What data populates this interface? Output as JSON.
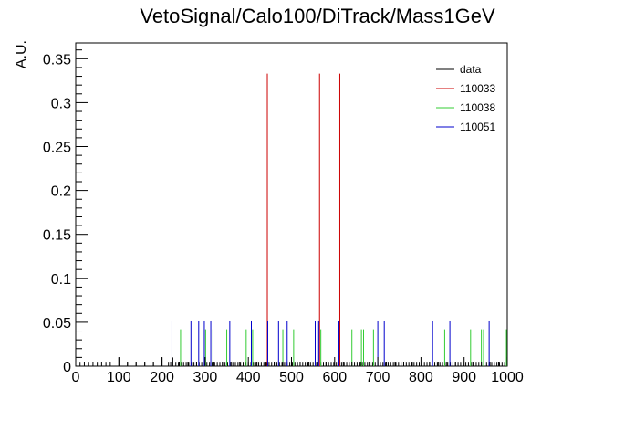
{
  "chart_data": {
    "type": "histogram",
    "title": "VetoSignal/Calo100/DiTrack/Mass1GeV",
    "xlabel": "",
    "ylabel": "A.U.",
    "xlim": [
      0,
      1000
    ],
    "ylim": [
      0,
      0.368
    ],
    "xticks": [
      0,
      100,
      200,
      300,
      400,
      500,
      600,
      700,
      800,
      900,
      1000
    ],
    "xtick_labels": [
      "0",
      "100",
      "200",
      "300",
      "400",
      "500",
      "600",
      "700",
      "800",
      "900",
      "1000"
    ],
    "yticks": [
      0,
      0.05,
      0.1,
      0.15,
      0.2,
      0.25,
      0.3,
      0.35
    ],
    "ytick_labels": [
      "0",
      "0.05",
      "0.1",
      "0.15",
      "0.2",
      "0.25",
      "0.3",
      "0.35"
    ],
    "grid": false,
    "legend_position": "top-right",
    "series": [
      {
        "name": "data",
        "color": "#000000",
        "x": [
          10,
          30,
          50,
          70,
          100,
          120,
          140,
          160,
          180,
          200,
          215,
          225,
          232,
          238,
          244,
          250,
          256,
          262,
          268,
          274,
          280,
          286,
          292,
          298,
          304,
          310,
          316,
          322,
          328,
          334,
          340,
          346,
          352,
          358,
          364,
          370,
          376,
          382,
          388,
          394,
          400,
          406,
          412,
          418,
          424,
          430,
          436,
          442,
          448,
          454,
          460,
          466,
          472,
          478,
          484,
          490,
          496,
          502,
          508,
          514,
          520,
          526,
          532,
          538,
          544,
          550,
          556,
          562,
          568,
          574,
          580,
          586,
          592,
          598,
          604,
          610,
          616,
          622,
          628,
          634,
          640,
          646,
          652,
          658,
          664,
          670,
          676,
          682,
          688,
          694,
          700,
          706,
          712,
          718,
          724,
          730,
          736,
          742,
          748,
          754,
          760,
          766,
          772,
          778,
          784,
          790,
          796,
          802,
          808,
          814,
          820,
          826,
          832,
          838,
          844,
          850,
          856,
          862,
          868,
          874,
          880,
          886,
          892,
          898,
          904,
          910,
          916,
          922,
          928,
          934,
          940,
          946,
          952,
          958,
          964,
          970,
          976,
          982,
          988,
          994
        ],
        "y": [
          0.005,
          0.005,
          0.005,
          0.005,
          0.01,
          0.005,
          0.005,
          0.005,
          0.005,
          0.01,
          0.005,
          0.01,
          0.005,
          0.005,
          0.005,
          0.005,
          0.005,
          0.005,
          0.005,
          0.005,
          0.005,
          0.005,
          0.005,
          0.005,
          0.005,
          0.005,
          0.005,
          0.005,
          0.005,
          0.005,
          0.005,
          0.005,
          0.005,
          0.005,
          0.005,
          0.005,
          0.005,
          0.005,
          0.005,
          0.005,
          0.005,
          0.005,
          0.005,
          0.005,
          0.005,
          0.005,
          0.005,
          0.005,
          0.005,
          0.005,
          0.005,
          0.005,
          0.005,
          0.005,
          0.005,
          0.005,
          0.005,
          0.005,
          0.005,
          0.005,
          0.005,
          0.005,
          0.005,
          0.005,
          0.005,
          0.005,
          0.005,
          0.005,
          0.005,
          0.005,
          0.005,
          0.005,
          0.005,
          0.005,
          0.005,
          0.005,
          0.005,
          0.005,
          0.005,
          0.005,
          0.005,
          0.005,
          0.005,
          0.005,
          0.005,
          0.005,
          0.005,
          0.005,
          0.005,
          0.005,
          0.005,
          0.005,
          0.005,
          0.005,
          0.005,
          0.005,
          0.005,
          0.005,
          0.005,
          0.005,
          0.005,
          0.005,
          0.005,
          0.005,
          0.005,
          0.005,
          0.005,
          0.005,
          0.005,
          0.005,
          0.005,
          0.005,
          0.005,
          0.005,
          0.005,
          0.005,
          0.005,
          0.005,
          0.005,
          0.005,
          0.005,
          0.005,
          0.005,
          0.005,
          0.005,
          0.005,
          0.005,
          0.005,
          0.005,
          0.005,
          0.005,
          0.005,
          0.005,
          0.005,
          0.005,
          0.005,
          0.005,
          0.005,
          0.005,
          0.005
        ]
      },
      {
        "name": "110033",
        "color": "#cc0000",
        "x": [
          444,
          565,
          612
        ],
        "y": [
          0.333,
          0.333,
          0.333
        ]
      },
      {
        "name": "110038",
        "color": "#33cc33",
        "x": [
          243,
          301,
          318,
          350,
          395,
          410,
          480,
          505,
          568,
          640,
          662,
          667,
          690,
          855,
          915,
          940,
          945,
          998
        ],
        "y": [
          0.042,
          0.042,
          0.042,
          0.042,
          0.042,
          0.042,
          0.042,
          0.042,
          0.042,
          0.042,
          0.042,
          0.042,
          0.042,
          0.042,
          0.042,
          0.042,
          0.042,
          0.042
        ]
      },
      {
        "name": "110051",
        "color": "#0000cc",
        "x": [
          223,
          267,
          285,
          298,
          313,
          357,
          407,
          445,
          470,
          490,
          555,
          563,
          610,
          700,
          715,
          827,
          867,
          958
        ],
        "y": [
          0.052,
          0.052,
          0.052,
          0.052,
          0.052,
          0.052,
          0.052,
          0.052,
          0.052,
          0.052,
          0.052,
          0.052,
          0.052,
          0.052,
          0.052,
          0.052,
          0.052,
          0.052
        ]
      }
    ]
  }
}
